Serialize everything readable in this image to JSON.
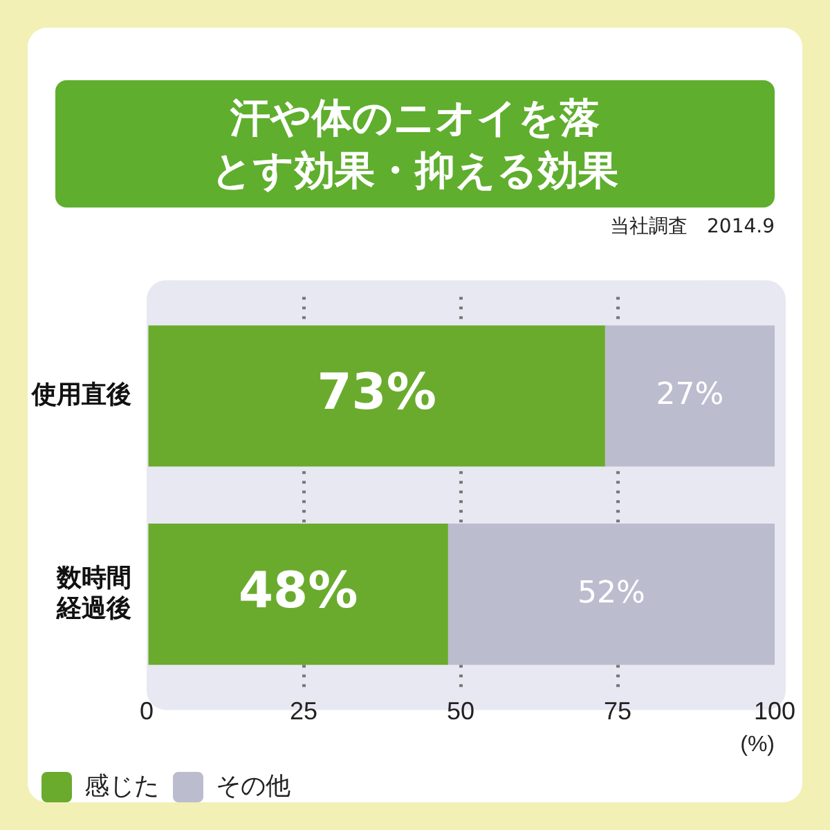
{
  "chart_data": {
    "type": "bar",
    "orientation": "horizontal",
    "stacked": true,
    "title": "汗や体のニオイを落とす効果・抑える効果",
    "annotations": [
      "当社調査　2014.9"
    ],
    "xlabel": "(%)",
    "categories": [
      "使用直後",
      "数時間経過後"
    ],
    "series": [
      {
        "name": "感じた",
        "color": "#6aab2e",
        "values": [
          73,
          48
        ],
        "value_labels": [
          "73%",
          "48%"
        ]
      },
      {
        "name": "その他",
        "color": "#bcbccf",
        "values": [
          27,
          52
        ],
        "value_labels": [
          "27%",
          "52%"
        ]
      }
    ],
    "xlim": [
      0,
      100
    ],
    "xticks": [
      0,
      25,
      50,
      75,
      100
    ],
    "grid": "x",
    "legend": "bottom left"
  }
}
